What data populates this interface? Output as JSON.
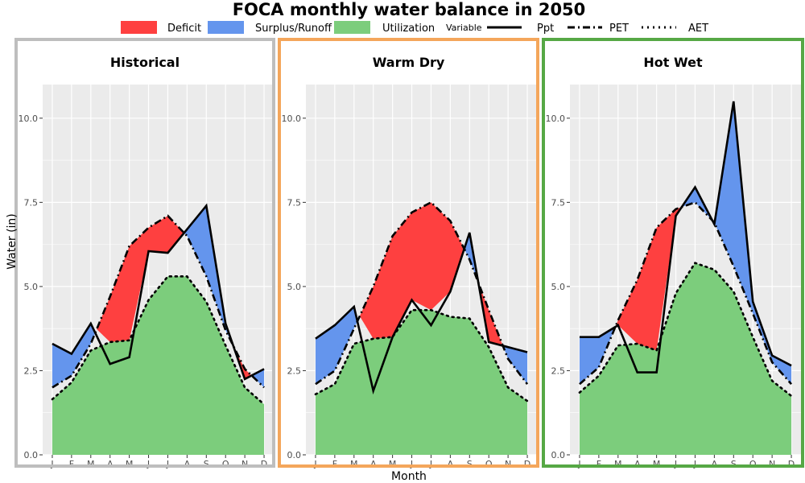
{
  "chart_data": {
    "type": "area",
    "title": "FOCA monthly water balance in 2050",
    "xlabel": "Month",
    "ylabel": "Water (in)",
    "ylim": [
      0,
      11
    ],
    "yticks": [
      "0.0",
      "2.5",
      "5.0",
      "7.5",
      "10.0"
    ],
    "ytick_values": [
      0,
      2.5,
      5,
      7.5,
      10
    ],
    "categories": [
      "J",
      "F",
      "M",
      "A",
      "M",
      "J",
      "J",
      "A",
      "S",
      "O",
      "N",
      "D"
    ],
    "legend": {
      "fill_items": [
        {
          "label": "Deficit",
          "color": "#fe4040"
        },
        {
          "label": "Surplus/Runoff",
          "color": "#6495ed"
        },
        {
          "label": "Utilization",
          "color": "#7ccd7c"
        }
      ],
      "line_title": "Variable",
      "line_items": [
        {
          "label": "Ppt",
          "style": "solid"
        },
        {
          "label": "PET",
          "style": "dashed"
        },
        {
          "label": "AET",
          "style": "dotted"
        }
      ],
      "placement": "top"
    },
    "panels": [
      {
        "title": "Historical",
        "border_color": "#bebebe",
        "ppt": [
          3.3,
          3.0,
          3.9,
          2.7,
          2.9,
          6.05,
          6.0,
          6.7,
          7.4,
          3.9,
          2.25,
          2.55
        ],
        "pet": [
          2.0,
          2.35,
          3.3,
          4.7,
          6.2,
          6.75,
          7.1,
          6.5,
          5.3,
          3.7,
          2.55,
          2.0
        ],
        "aet": [
          1.65,
          2.15,
          3.1,
          3.35,
          3.4,
          4.6,
          5.3,
          5.3,
          4.55,
          3.25,
          2.0,
          1.5
        ]
      },
      {
        "title": "Warm Dry",
        "border_color": "#f4a65b",
        "ppt": [
          3.45,
          3.85,
          4.4,
          1.9,
          3.5,
          4.6,
          3.85,
          4.85,
          6.6,
          3.35,
          3.2,
          3.05
        ],
        "pet": [
          2.1,
          2.5,
          3.75,
          5.0,
          6.5,
          7.2,
          7.5,
          6.95,
          5.8,
          4.3,
          2.85,
          2.1
        ],
        "aet": [
          1.8,
          2.1,
          3.3,
          3.45,
          3.5,
          4.3,
          4.3,
          4.1,
          4.05,
          3.2,
          2.0,
          1.6
        ]
      },
      {
        "title": "Hot Wet",
        "border_color": "#56a845",
        "ppt": [
          3.5,
          3.5,
          3.85,
          2.45,
          2.45,
          7.1,
          7.95,
          6.85,
          10.5,
          4.55,
          2.95,
          2.65
        ],
        "pet": [
          2.1,
          2.6,
          4.0,
          5.2,
          6.75,
          7.3,
          7.5,
          6.9,
          5.6,
          4.2,
          2.75,
          2.1
        ],
        "aet": [
          1.85,
          2.35,
          3.25,
          3.3,
          3.1,
          4.8,
          5.7,
          5.5,
          4.85,
          3.5,
          2.2,
          1.75
        ]
      }
    ],
    "colors": {
      "deficit": "#fe4040",
      "surplus": "#6495ed",
      "utilization": "#7ccd7c",
      "panel_bg": "#ebebeb",
      "grid": "#ffffff",
      "tick_text": "#4d4d4d"
    },
    "grid": true
  }
}
